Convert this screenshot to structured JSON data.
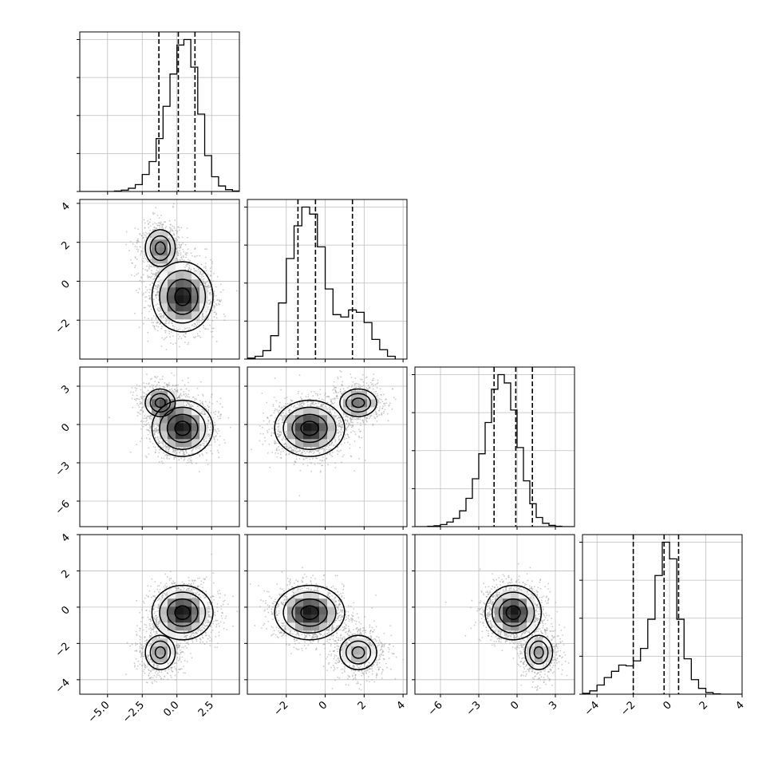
{
  "chart_data": {
    "type": "scatter",
    "title": "",
    "grid": true,
    "variables": [
      {
        "range": [
          -7.0,
          4.5
        ],
        "ticks": [
          -5.0,
          -2.5,
          0.0,
          2.5
        ],
        "tick_labels": [
          "−5.0",
          "−2.5",
          "0.0",
          "2.5"
        ]
      },
      {
        "range": [
          -4.0,
          4.2
        ],
        "ticks": [
          -2,
          0,
          2,
          4
        ],
        "tick_labels": [
          "−2",
          "0",
          "2",
          "4"
        ]
      },
      {
        "range": [
          -8.0,
          4.5
        ],
        "ticks": [
          -6,
          -3,
          0,
          3
        ],
        "tick_labels": [
          "−6",
          "−3",
          "0",
          "3"
        ]
      },
      {
        "range": [
          -4.8,
          4.0
        ],
        "ticks": [
          -4,
          -2,
          0,
          2,
          4
        ],
        "tick_labels": [
          "−4",
          "−2",
          "0",
          "2",
          "4"
        ]
      }
    ],
    "quantiles": [
      [
        -1.3,
        0.1,
        1.3
      ],
      [
        -1.4,
        -0.5,
        1.4
      ],
      [
        -1.8,
        -0.1,
        1.2
      ],
      [
        -2.0,
        -0.3,
        0.5
      ]
    ],
    "histograms": [
      {
        "edges": [
          -7.0,
          -6.5,
          -6.0,
          -5.5,
          -5.0,
          -4.5,
          -4.0,
          -3.5,
          -3.0,
          -2.5,
          -2.0,
          -1.5,
          -1.0,
          -0.5,
          0.0,
          0.5,
          1.0,
          1.5,
          2.0,
          2.5,
          3.0,
          3.5,
          4.0,
          4.5
        ],
        "counts": [
          0,
          0,
          0,
          0,
          0,
          1,
          3,
          7,
          15,
          37,
          65,
          115,
          185,
          255,
          318,
          330,
          270,
          168,
          78,
          32,
          12,
          4,
          1
        ]
      },
      {
        "edges": [
          -4.0,
          -3.6,
          -3.2,
          -2.8,
          -2.4,
          -2.0,
          -1.6,
          -1.2,
          -0.8,
          -0.4,
          0.0,
          0.4,
          0.8,
          1.2,
          1.6,
          2.0,
          2.4,
          2.8,
          3.2,
          3.6
        ],
        "counts": [
          2,
          6,
          18,
          50,
          120,
          215,
          285,
          325,
          310,
          240,
          150,
          95,
          90,
          105,
          100,
          78,
          42,
          20,
          6
        ]
      },
      {
        "edges": [
          -8.0,
          -7.5,
          -7.0,
          -6.5,
          -6.0,
          -5.5,
          -5.0,
          -4.5,
          -4.0,
          -3.5,
          -3.0,
          -2.5,
          -2.0,
          -1.5,
          -1.0,
          -0.5,
          0.0,
          0.5,
          1.0,
          1.5,
          2.0,
          2.5,
          3.0,
          3.5,
          4.0,
          4.5
        ],
        "counts": [
          0,
          0,
          1,
          2,
          5,
          11,
          20,
          38,
          68,
          115,
          175,
          250,
          330,
          365,
          345,
          280,
          190,
          110,
          55,
          22,
          8,
          3,
          1,
          0,
          0
        ]
      },
      {
        "edges": [
          -4.8,
          -4.4,
          -4.0,
          -3.6,
          -3.2,
          -2.8,
          -2.4,
          -2.0,
          -1.6,
          -1.2,
          -0.8,
          -0.4,
          0.0,
          0.4,
          0.8,
          1.2,
          1.6,
          2.0,
          2.4,
          2.8,
          3.2,
          3.6,
          4.0
        ],
        "counts": [
          2,
          8,
          22,
          40,
          55,
          70,
          68,
          80,
          110,
          180,
          285,
          365,
          325,
          180,
          85,
          35,
          14,
          4,
          1,
          0,
          0,
          0
        ]
      }
    ],
    "components": [
      {
        "weight": 0.72,
        "mean": [
          0.4,
          -0.8,
          -0.3,
          -0.3
        ],
        "sd": [
          1.1,
          0.9,
          1.1,
          0.75
        ]
      },
      {
        "weight": 0.28,
        "mean": [
          -1.2,
          1.7,
          1.7,
          -2.5
        ],
        "sd": [
          0.8,
          0.7,
          0.8,
          0.7
        ]
      }
    ],
    "contour_levels_sigma": [
      0.5,
      1.0,
      1.5,
      2.0
    ]
  }
}
